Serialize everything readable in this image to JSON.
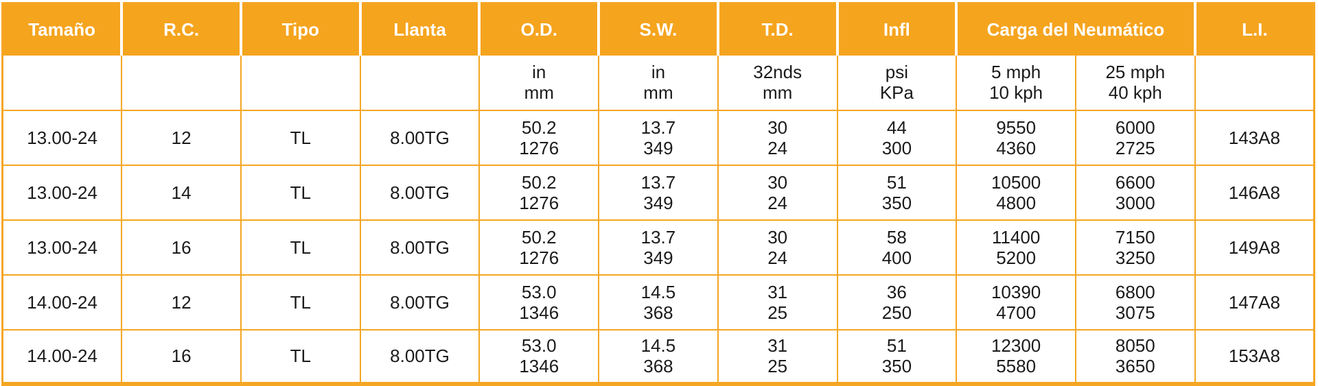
{
  "colors": {
    "header_bg": "#F5A41E",
    "header_text": "#FFFFFF",
    "grid_line": "#F5A623",
    "body_text": "#1B1B1B",
    "page_bg": "#FFFFFF"
  },
  "table": {
    "header_cells": [
      {
        "label": "Tamaño",
        "colspan": 1
      },
      {
        "label": "R.C.",
        "colspan": 1
      },
      {
        "label": "Tipo",
        "colspan": 1
      },
      {
        "label": "Llanta",
        "colspan": 1
      },
      {
        "label": "O.D.",
        "colspan": 1
      },
      {
        "label": "S.W.",
        "colspan": 1
      },
      {
        "label": "T.D.",
        "colspan": 1
      },
      {
        "label": "Infl",
        "colspan": 1
      },
      {
        "label": "Carga del Neumático",
        "colspan": 2
      },
      {
        "label": "L.I.",
        "colspan": 1
      }
    ],
    "units_row": [
      [],
      [],
      [],
      [],
      [
        "in",
        "mm"
      ],
      [
        "in",
        "mm"
      ],
      [
        "32nds",
        "mm"
      ],
      [
        "psi",
        "KPa"
      ],
      [
        "5 mph",
        "10 kph"
      ],
      [
        "25 mph",
        "40 kph"
      ],
      []
    ],
    "rows": [
      [
        [
          "13.00-24"
        ],
        [
          "12"
        ],
        [
          "TL"
        ],
        [
          "8.00TG"
        ],
        [
          "50.2",
          "1276"
        ],
        [
          "13.7",
          "349"
        ],
        [
          "30",
          "24"
        ],
        [
          "44",
          "300"
        ],
        [
          "9550",
          "4360"
        ],
        [
          "6000",
          "2725"
        ],
        [
          "143A8"
        ]
      ],
      [
        [
          "13.00-24"
        ],
        [
          "14"
        ],
        [
          "TL"
        ],
        [
          "8.00TG"
        ],
        [
          "50.2",
          "1276"
        ],
        [
          "13.7",
          "349"
        ],
        [
          "30",
          "24"
        ],
        [
          "51",
          "350"
        ],
        [
          "10500",
          "4800"
        ],
        [
          "6600",
          "3000"
        ],
        [
          "146A8"
        ]
      ],
      [
        [
          "13.00-24"
        ],
        [
          "16"
        ],
        [
          "TL"
        ],
        [
          "8.00TG"
        ],
        [
          "50.2",
          "1276"
        ],
        [
          "13.7",
          "349"
        ],
        [
          "30",
          "24"
        ],
        [
          "58",
          "400"
        ],
        [
          "11400",
          "5200"
        ],
        [
          "7150",
          "3250"
        ],
        [
          "149A8"
        ]
      ],
      [
        [
          "14.00-24"
        ],
        [
          "12"
        ],
        [
          "TL"
        ],
        [
          "8.00TG"
        ],
        [
          "53.0",
          "1346"
        ],
        [
          "14.5",
          "368"
        ],
        [
          "31",
          "25"
        ],
        [
          "36",
          "250"
        ],
        [
          "10390",
          "4700"
        ],
        [
          "6800",
          "3075"
        ],
        [
          "147A8"
        ]
      ],
      [
        [
          "14.00-24"
        ],
        [
          "16"
        ],
        [
          "TL"
        ],
        [
          "8.00TG"
        ],
        [
          "53.0",
          "1346"
        ],
        [
          "14.5",
          "368"
        ],
        [
          "31",
          "25"
        ],
        [
          "51",
          "350"
        ],
        [
          "12300",
          "5580"
        ],
        [
          "8050",
          "3650"
        ],
        [
          "153A8"
        ]
      ]
    ]
  }
}
